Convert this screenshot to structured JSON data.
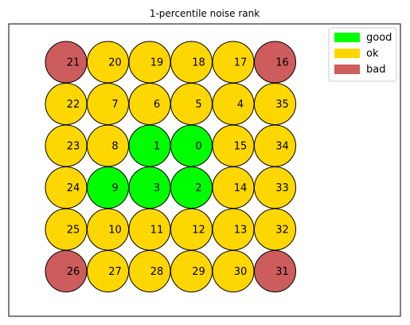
{
  "chart_data": {
    "type": "grid",
    "title": "1-percentile noise rank",
    "categories": {
      "good": "#00ff00",
      "ok": "#ffd700",
      "bad": "#cd5c5c"
    },
    "legend": {
      "position": "top-right",
      "entries": [
        {
          "label": "good",
          "color": "#00ff00"
        },
        {
          "label": "ok",
          "color": "#ffd700"
        },
        {
          "label": "bad",
          "color": "#cd5c5c"
        }
      ]
    },
    "rows": 6,
    "cols": 6,
    "cells": [
      {
        "id": 21,
        "row": 0,
        "col": 0,
        "status": "bad"
      },
      {
        "id": 20,
        "row": 0,
        "col": 1,
        "status": "ok"
      },
      {
        "id": 19,
        "row": 0,
        "col": 2,
        "status": "ok"
      },
      {
        "id": 18,
        "row": 0,
        "col": 3,
        "status": "ok"
      },
      {
        "id": 17,
        "row": 0,
        "col": 4,
        "status": "ok"
      },
      {
        "id": 16,
        "row": 0,
        "col": 5,
        "status": "bad"
      },
      {
        "id": 22,
        "row": 1,
        "col": 0,
        "status": "ok"
      },
      {
        "id": 7,
        "row": 1,
        "col": 1,
        "status": "ok"
      },
      {
        "id": 6,
        "row": 1,
        "col": 2,
        "status": "ok"
      },
      {
        "id": 5,
        "row": 1,
        "col": 3,
        "status": "ok"
      },
      {
        "id": 4,
        "row": 1,
        "col": 4,
        "status": "ok"
      },
      {
        "id": 35,
        "row": 1,
        "col": 5,
        "status": "ok"
      },
      {
        "id": 23,
        "row": 2,
        "col": 0,
        "status": "ok"
      },
      {
        "id": 8,
        "row": 2,
        "col": 1,
        "status": "ok"
      },
      {
        "id": 1,
        "row": 2,
        "col": 2,
        "status": "good"
      },
      {
        "id": 0,
        "row": 2,
        "col": 3,
        "status": "good"
      },
      {
        "id": 15,
        "row": 2,
        "col": 4,
        "status": "ok"
      },
      {
        "id": 34,
        "row": 2,
        "col": 5,
        "status": "ok"
      },
      {
        "id": 24,
        "row": 3,
        "col": 0,
        "status": "ok"
      },
      {
        "id": 9,
        "row": 3,
        "col": 1,
        "status": "good"
      },
      {
        "id": 3,
        "row": 3,
        "col": 2,
        "status": "good"
      },
      {
        "id": 2,
        "row": 3,
        "col": 3,
        "status": "good"
      },
      {
        "id": 14,
        "row": 3,
        "col": 4,
        "status": "ok"
      },
      {
        "id": 33,
        "row": 3,
        "col": 5,
        "status": "ok"
      },
      {
        "id": 25,
        "row": 4,
        "col": 0,
        "status": "ok"
      },
      {
        "id": 10,
        "row": 4,
        "col": 1,
        "status": "ok"
      },
      {
        "id": 11,
        "row": 4,
        "col": 2,
        "status": "ok"
      },
      {
        "id": 12,
        "row": 4,
        "col": 3,
        "status": "ok"
      },
      {
        "id": 13,
        "row": 4,
        "col": 4,
        "status": "ok"
      },
      {
        "id": 32,
        "row": 4,
        "col": 5,
        "status": "ok"
      },
      {
        "id": 26,
        "row": 5,
        "col": 0,
        "status": "bad"
      },
      {
        "id": 27,
        "row": 5,
        "col": 1,
        "status": "ok"
      },
      {
        "id": 28,
        "row": 5,
        "col": 2,
        "status": "ok"
      },
      {
        "id": 29,
        "row": 5,
        "col": 3,
        "status": "ok"
      },
      {
        "id": 30,
        "row": 5,
        "col": 4,
        "status": "ok"
      },
      {
        "id": 31,
        "row": 5,
        "col": 5,
        "status": "bad"
      }
    ]
  }
}
